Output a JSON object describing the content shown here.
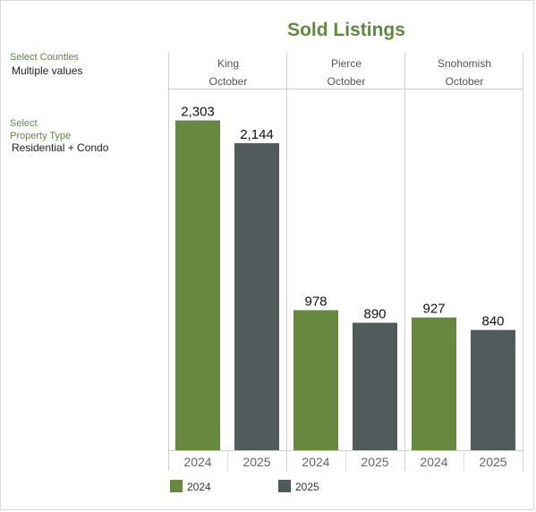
{
  "title": "Sold Listings",
  "filters": {
    "counties_label": "Select Counties",
    "counties_value": "Multiple values",
    "property_label_line1": "Select",
    "property_label_line2": "Property Type",
    "property_value": "Residential + Condo"
  },
  "colors": {
    "2024": "#66883f",
    "2025": "#525b5b",
    "accent": "#5f8a3e"
  },
  "chart_data": {
    "type": "bar",
    "title": "Sold Listings",
    "panels": [
      {
        "county": "King",
        "month": "October",
        "categories": [
          "2024",
          "2025"
        ],
        "values": [
          2303,
          2144
        ],
        "labels": [
          "2,303",
          "2,144"
        ]
      },
      {
        "county": "Pierce",
        "month": "October",
        "categories": [
          "2024",
          "2025"
        ],
        "values": [
          978,
          890
        ],
        "labels": [
          "978",
          "890"
        ]
      },
      {
        "county": "Snohomish",
        "month": "October",
        "categories": [
          "2024",
          "2025"
        ],
        "values": [
          927,
          840
        ],
        "labels": [
          "927",
          "840"
        ]
      }
    ],
    "ylim": [
      0,
      2500
    ],
    "grid": false,
    "legend": {
      "position": "bottom-left",
      "entries": [
        "2024",
        "2025"
      ]
    }
  }
}
